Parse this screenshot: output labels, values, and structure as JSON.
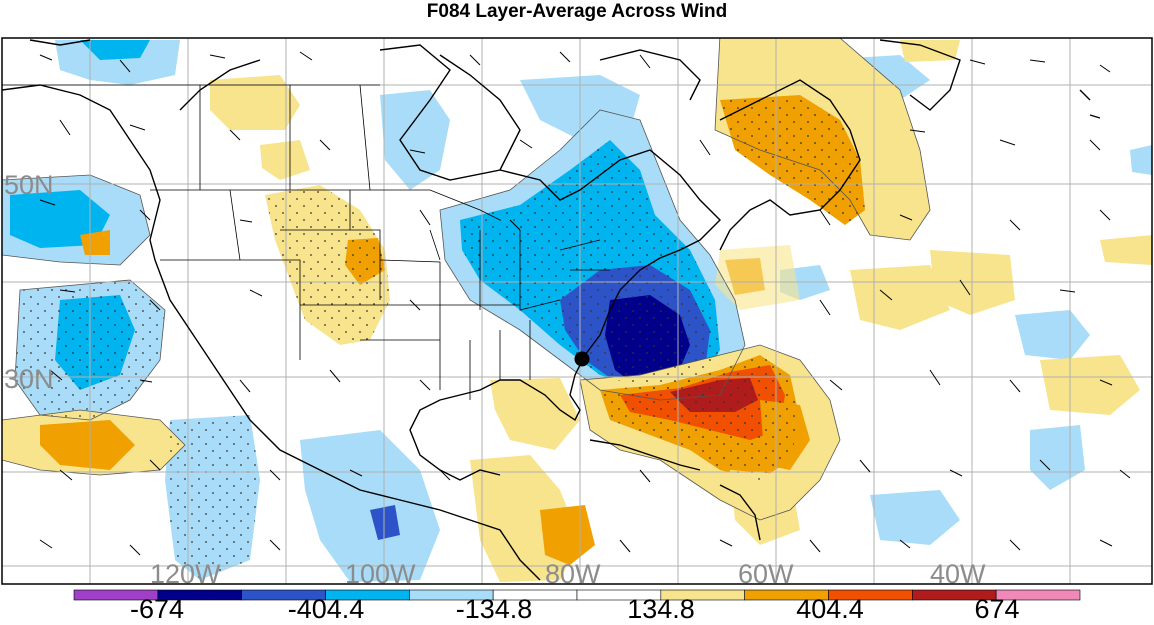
{
  "title": "F084 Layer-Average Across Wind",
  "map": {
    "region": "North America and western Atlantic",
    "longitude_labels": [
      "120W",
      "100W",
      "80W",
      "60W",
      "40W"
    ],
    "latitude_labels": [
      "50N",
      "30N"
    ],
    "grid": true,
    "projection": "cylindrical equidistant",
    "marker": {
      "type": "storm-center-dot",
      "lon": -77,
      "lat": 32,
      "color": "#000000"
    }
  },
  "colorbar": {
    "labels": [
      "-674",
      "-404.4",
      "-134.8",
      "134.8",
      "404.4",
      "674"
    ],
    "colors": [
      "#a040c8",
      "#00008b",
      "#2c54c8",
      "#00b4f0",
      "#a8dcf8",
      "#ffffff",
      "#ffffff",
      "#f8e48c",
      "#f0a000",
      "#f05000",
      "#b01c1c",
      "#f088b8"
    ]
  },
  "colors": {
    "strong_negative": "#00008b",
    "negative": "#2c54c8",
    "moderate_negative": "#00b4f0",
    "weak_negative": "#a8dcf8",
    "weak_positive": "#f8e48c",
    "moderate_positive": "#f0a000",
    "positive": "#f05000",
    "strong_positive": "#b01c1c"
  }
}
